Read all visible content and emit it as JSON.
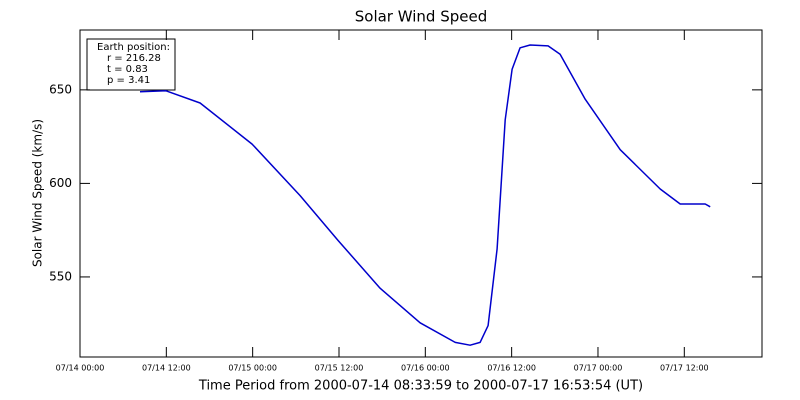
{
  "chart_data": {
    "type": "line",
    "title": "Solar Wind Speed",
    "xlabel": "Time Period from 2000-07-14 08:33:59 to 2000-07-17 16:53:54 (UT)",
    "ylabel": "Solar Wind Speed (km/s)",
    "annotations": [
      "Earth position:",
      "r = 216.28",
      "t = 0.83",
      "p = 3.41"
    ],
    "x": [
      8.34,
      11.96,
      16.69,
      23.92,
      30.59,
      35.88,
      41.72,
      47.28,
      52.15,
      54.23,
      55.62,
      56.73,
      57.98,
      59.1,
      60.07,
      61.18,
      62.57,
      65.07,
      66.74,
      70.22,
      75.09,
      80.65,
      83.43,
      86.9,
      87.6
    ],
    "series": [
      {
        "name": "Solar Wind Speed",
        "color": "#0000cc",
        "values": [
          649,
          649.5,
          643,
          621,
          593.5,
          569.5,
          544,
          525.5,
          515,
          513.5,
          515,
          524,
          565,
          634,
          661,
          672.5,
          674,
          673.5,
          669,
          645,
          618,
          597,
          589,
          589,
          587.5
        ]
      }
    ],
    "xlim": [
      0,
      94.8
    ],
    "xticks": [
      {
        "value": 0,
        "label": "07/14 00:00"
      },
      {
        "value": 12,
        "label": "07/14 12:00"
      },
      {
        "value": 24,
        "label": "07/15 00:00"
      },
      {
        "value": 36,
        "label": "07/15 12:00"
      },
      {
        "value": 48,
        "label": "07/16 00:00"
      },
      {
        "value": 60,
        "label": "07/16 12:00"
      },
      {
        "value": 72,
        "label": "07/17 00:00"
      },
      {
        "value": 84,
        "label": "07/17 12:00"
      }
    ],
    "ylim": [
      507.2,
      682
    ],
    "yticks": [
      550,
      600,
      650
    ]
  }
}
